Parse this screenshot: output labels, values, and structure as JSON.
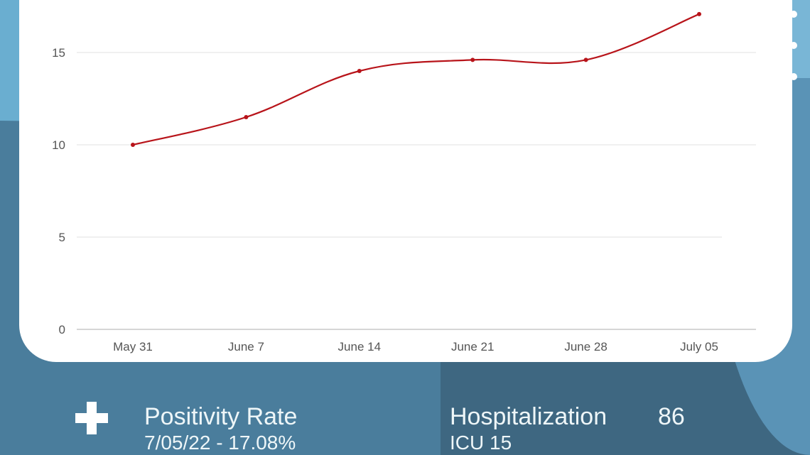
{
  "chart_data": {
    "type": "line",
    "categories": [
      "May 31",
      "June 7",
      "June 14",
      "June 21",
      "June 28",
      "July 05"
    ],
    "series": [
      {
        "values": [
          10,
          11.5,
          14,
          14.6,
          14.6,
          17.08
        ],
        "color": "#b8141a"
      }
    ],
    "yticks": [
      0,
      5,
      10,
      15
    ],
    "ylim": [
      0,
      17.5
    ],
    "grid": true
  },
  "footer": {
    "positivity_label": "Positivity Rate",
    "positivity_value": "7/05/22 - 17.08%",
    "hospitalization_label": "Hospitalization",
    "hospitalization_value": "86",
    "icu": "ICU 15"
  },
  "colors": {
    "background": "#3e6781",
    "line": "#b8141a",
    "text": "#eef6f8"
  }
}
